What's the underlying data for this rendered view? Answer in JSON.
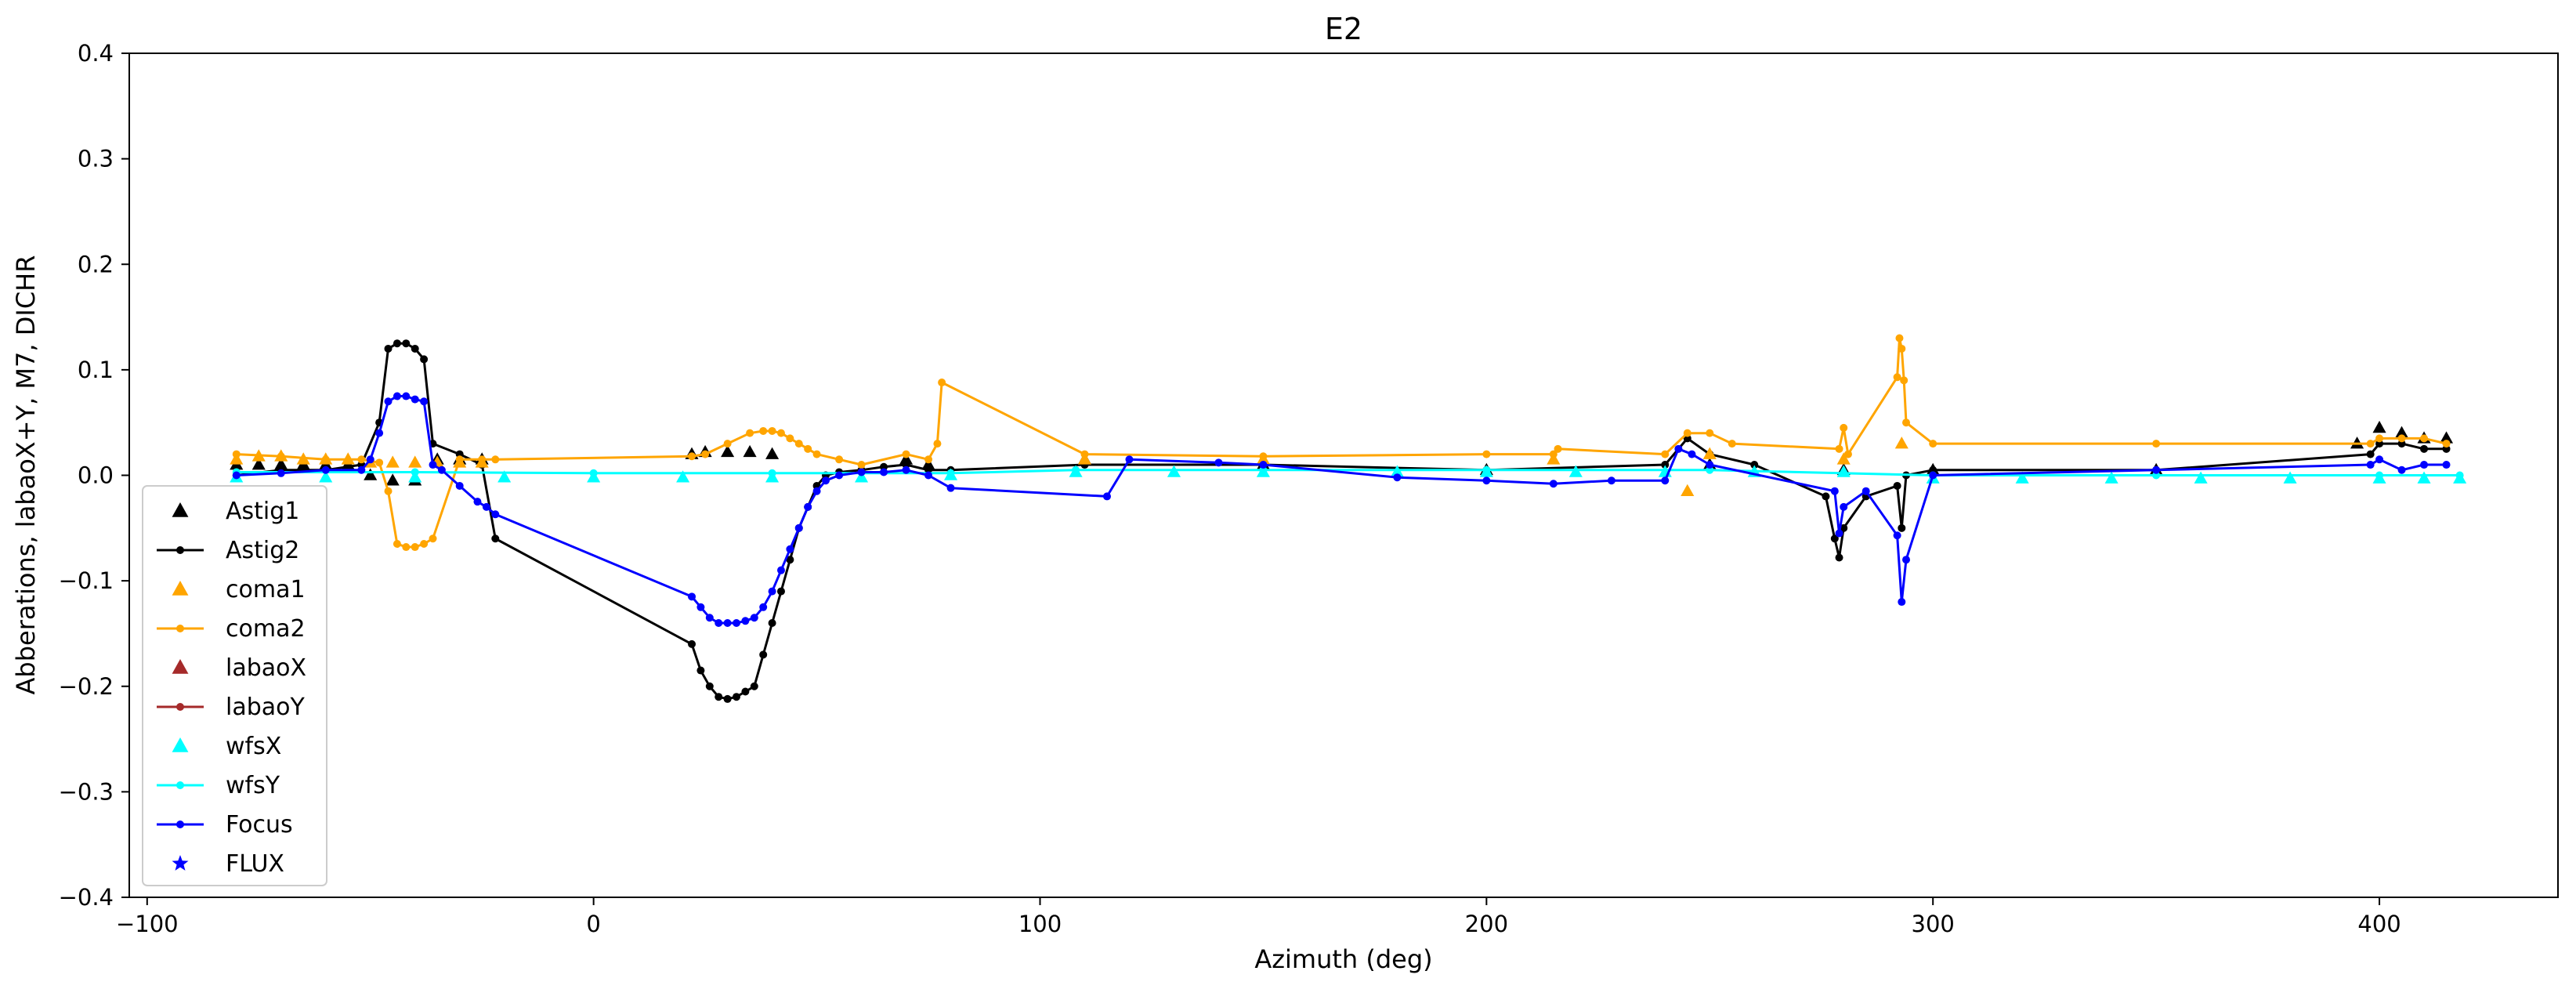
{
  "chart_data": {
    "type": "line",
    "title": "E2",
    "xlabel": "Azimuth (deg)",
    "ylabel": "Abberations, labaoX+Y, M7, DICHR",
    "xlim": [
      -104,
      440
    ],
    "ylim": [
      -0.4,
      0.4
    ],
    "xticks": [
      -100,
      0,
      100,
      200,
      300,
      400
    ],
    "yticks": [
      -0.4,
      -0.3,
      -0.2,
      -0.1,
      0.0,
      0.1,
      0.2,
      0.3,
      0.4
    ],
    "grid": false,
    "legend_position": "lower-left",
    "series": [
      {
        "name": "Astig1",
        "marker": "triangle",
        "color": "#000000",
        "line": false,
        "x": [
          -80,
          -75,
          -70,
          -65,
          -60,
          -55,
          -50,
          -45,
          -40,
          -35,
          -30,
          -25,
          22,
          25,
          30,
          35,
          40,
          70,
          75,
          110,
          150,
          200,
          250,
          280,
          300,
          350,
          395,
          400,
          405,
          410,
          415
        ],
        "y": [
          0.01,
          0.01,
          0.01,
          0.01,
          0.01,
          0.01,
          0.0,
          -0.005,
          -0.005,
          0.015,
          0.015,
          0.015,
          0.02,
          0.022,
          0.022,
          0.022,
          0.02,
          0.015,
          0.01,
          0.015,
          0.01,
          0.005,
          0.01,
          0.005,
          0.005,
          0.005,
          0.03,
          0.045,
          0.04,
          0.035,
          0.035
        ]
      },
      {
        "name": "Astig2",
        "marker": "dot",
        "color": "#000000",
        "line": true,
        "x": [
          -80,
          -70,
          -60,
          -52,
          -48,
          -46,
          -44,
          -42,
          -40,
          -38,
          -36,
          -30,
          -25,
          -22,
          22,
          24,
          26,
          28,
          30,
          32,
          34,
          36,
          38,
          40,
          42,
          44,
          46,
          48,
          50,
          52,
          55,
          60,
          65,
          70,
          75,
          80,
          110,
          150,
          200,
          240,
          245,
          250,
          260,
          276,
          278,
          279,
          280,
          285,
          292,
          293,
          294,
          300,
          350,
          398,
          400,
          405,
          410,
          415
        ],
        "y": [
          0.0,
          0.005,
          0.005,
          0.01,
          0.05,
          0.12,
          0.125,
          0.125,
          0.12,
          0.11,
          0.03,
          0.02,
          0.01,
          -0.06,
          -0.16,
          -0.185,
          -0.2,
          -0.21,
          -0.212,
          -0.21,
          -0.205,
          -0.2,
          -0.17,
          -0.14,
          -0.11,
          -0.08,
          -0.05,
          -0.03,
          -0.01,
          0.0,
          0.003,
          0.005,
          0.008,
          0.01,
          0.005,
          0.005,
          0.01,
          0.01,
          0.005,
          0.01,
          0.035,
          0.02,
          0.01,
          -0.02,
          -0.06,
          -0.078,
          -0.05,
          -0.02,
          -0.01,
          -0.05,
          0.0,
          0.005,
          0.005,
          0.02,
          0.03,
          0.03,
          0.025,
          0.025
        ]
      },
      {
        "name": "coma1",
        "marker": "triangle",
        "color": "#ffa500",
        "line": false,
        "x": [
          -80,
          -75,
          -70,
          -65,
          -60,
          -55,
          -50,
          -45,
          -40,
          -35,
          -30,
          -25,
          110,
          150,
          215,
          245,
          250,
          280,
          293
        ],
        "y": [
          0.015,
          0.018,
          0.018,
          0.015,
          0.015,
          0.015,
          0.012,
          0.012,
          0.012,
          0.012,
          0.012,
          0.012,
          0.015,
          0.015,
          0.015,
          -0.015,
          0.02,
          0.015,
          0.03
        ]
      },
      {
        "name": "coma2",
        "marker": "dot",
        "color": "#ffa500",
        "line": true,
        "x": [
          -80,
          -70,
          -60,
          -52,
          -48,
          -46,
          -44,
          -42,
          -40,
          -38,
          -36,
          -30,
          -25,
          -22,
          22,
          25,
          30,
          35,
          38,
          40,
          42,
          44,
          46,
          48,
          50,
          55,
          60,
          70,
          75,
          77,
          78,
          110,
          150,
          200,
          215,
          216,
          240,
          245,
          250,
          255,
          279,
          280,
          281,
          292,
          292.5,
          293,
          293.5,
          294,
          300,
          350,
          398,
          400,
          405,
          410,
          415
        ],
        "y": [
          0.02,
          0.018,
          0.015,
          0.015,
          0.012,
          -0.015,
          -0.065,
          -0.068,
          -0.068,
          -0.065,
          -0.06,
          0.015,
          0.015,
          0.015,
          0.018,
          0.02,
          0.03,
          0.04,
          0.042,
          0.042,
          0.04,
          0.035,
          0.03,
          0.025,
          0.02,
          0.015,
          0.01,
          0.02,
          0.015,
          0.03,
          0.088,
          0.02,
          0.018,
          0.02,
          0.02,
          0.025,
          0.02,
          0.04,
          0.04,
          0.03,
          0.025,
          0.045,
          0.02,
          0.093,
          0.13,
          0.12,
          0.09,
          0.05,
          0.03,
          0.03,
          0.03,
          0.035,
          0.035,
          0.035,
          0.03
        ]
      },
      {
        "name": "labaoX",
        "marker": "triangle",
        "color": "#a52a2a",
        "line": false,
        "x": [],
        "y": []
      },
      {
        "name": "labaoY",
        "marker": "dot",
        "color": "#a52a2a",
        "line": true,
        "x": [],
        "y": []
      },
      {
        "name": "wfsX",
        "marker": "triangle",
        "color": "#00ffff",
        "line": false,
        "x": [
          -80,
          -60,
          -40,
          -20,
          0,
          20,
          40,
          60,
          80,
          108,
          130,
          150,
          180,
          200,
          220,
          240,
          260,
          280,
          300,
          320,
          340,
          360,
          380,
          400,
          410,
          418
        ],
        "y": [
          -0.002,
          -0.002,
          -0.002,
          -0.002,
          -0.002,
          -0.002,
          -0.002,
          -0.002,
          0.0,
          0.003,
          0.003,
          0.003,
          0.003,
          0.003,
          0.003,
          0.003,
          0.003,
          0.003,
          -0.003,
          -0.003,
          -0.003,
          -0.003,
          -0.003,
          -0.003,
          -0.003,
          -0.003
        ]
      },
      {
        "name": "wfsY",
        "marker": "dot",
        "color": "#00ffff",
        "line": true,
        "x": [
          -80,
          -40,
          0,
          40,
          80,
          108,
          150,
          200,
          250,
          300,
          350,
          400,
          418
        ],
        "y": [
          0.003,
          0.003,
          0.002,
          0.002,
          0.002,
          0.005,
          0.005,
          0.005,
          0.005,
          0.0,
          0.0,
          0.0,
          0.0
        ]
      },
      {
        "name": "Focus",
        "marker": "dot",
        "color": "#0000ff",
        "line": true,
        "x": [
          -80,
          -70,
          -60,
          -52,
          -50,
          -48,
          -46,
          -44,
          -42,
          -40,
          -38,
          -36,
          -34,
          -30,
          -26,
          -24,
          -22,
          22,
          24,
          26,
          28,
          30,
          32,
          34,
          36,
          38,
          40,
          42,
          44,
          46,
          48,
          50,
          52,
          55,
          60,
          65,
          70,
          75,
          80,
          115,
          120,
          140,
          150,
          180,
          200,
          215,
          228,
          240,
          243,
          246,
          250,
          278,
          279,
          280,
          285,
          292,
          293,
          294,
          300,
          350,
          398,
          400,
          405,
          410,
          415
        ],
        "y": [
          0.0,
          0.002,
          0.005,
          0.005,
          0.015,
          0.04,
          0.07,
          0.075,
          0.075,
          0.072,
          0.07,
          0.01,
          0.005,
          -0.01,
          -0.025,
          -0.03,
          -0.037,
          -0.115,
          -0.125,
          -0.135,
          -0.14,
          -0.14,
          -0.14,
          -0.138,
          -0.135,
          -0.125,
          -0.11,
          -0.09,
          -0.07,
          -0.05,
          -0.03,
          -0.015,
          -0.005,
          0.0,
          0.003,
          0.003,
          0.005,
          0.0,
          -0.012,
          -0.02,
          0.015,
          0.012,
          0.01,
          -0.002,
          -0.005,
          -0.008,
          -0.005,
          -0.005,
          0.025,
          0.02,
          0.01,
          -0.015,
          -0.055,
          -0.03,
          -0.015,
          -0.057,
          -0.12,
          -0.08,
          0.0,
          0.005,
          0.01,
          0.015,
          0.005,
          0.01,
          0.01
        ]
      },
      {
        "name": "FLUX",
        "marker": "star",
        "color": "#0000ff",
        "line": false,
        "x": [],
        "y": []
      }
    ]
  }
}
